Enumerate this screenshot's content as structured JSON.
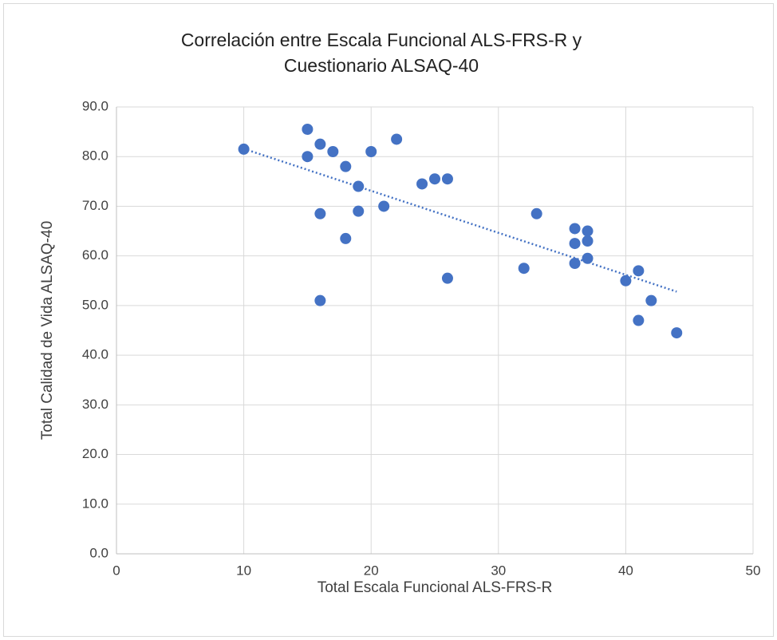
{
  "chart_data": {
    "type": "scatter",
    "title": "Correlación entre Escala Funcional ALS-FRS-R y Cuestionario ALSAQ-40",
    "x_label": "Total Escala Funcional ALS-FRS-R",
    "y_label": "Total Calidad de Vida ALSAQ-40",
    "color": "#4472c4",
    "x": [
      10,
      15,
      15,
      16,
      17,
      18,
      19,
      19,
      16,
      18,
      16,
      20,
      21,
      22,
      24,
      25,
      26,
      26,
      32,
      33,
      36,
      36,
      36,
      37,
      37,
      37,
      40,
      41,
      41,
      42,
      44
    ],
    "values": [
      81.5,
      85.5,
      80,
      82.5,
      81,
      78,
      74,
      69,
      68.5,
      63.5,
      51,
      81,
      70,
      83.5,
      74.5,
      75.5,
      75.5,
      55.5,
      57.5,
      68.5,
      65.5,
      62.5,
      58.5,
      65,
      63,
      59.5,
      55,
      57,
      47,
      51,
      44.5
    ],
    "xlim": [
      0,
      50
    ],
    "xticks": [
      0,
      10,
      20,
      30,
      40,
      50
    ],
    "ylim": [
      0,
      90
    ],
    "yticks": [
      {
        "value": 0,
        "label": "0.0"
      },
      {
        "value": 10,
        "label": "10.0"
      },
      {
        "value": 20,
        "label": "20.0"
      },
      {
        "value": 30,
        "label": "30.0"
      },
      {
        "value": 40,
        "label": "40.0"
      },
      {
        "value": 50,
        "label": "50.0"
      },
      {
        "value": 60,
        "label": "60.0"
      },
      {
        "value": 70,
        "label": "70.0"
      },
      {
        "value": 80,
        "label": "80.0"
      },
      {
        "value": 90,
        "label": "90.0"
      }
    ],
    "grid": true,
    "trendline": "linear"
  }
}
